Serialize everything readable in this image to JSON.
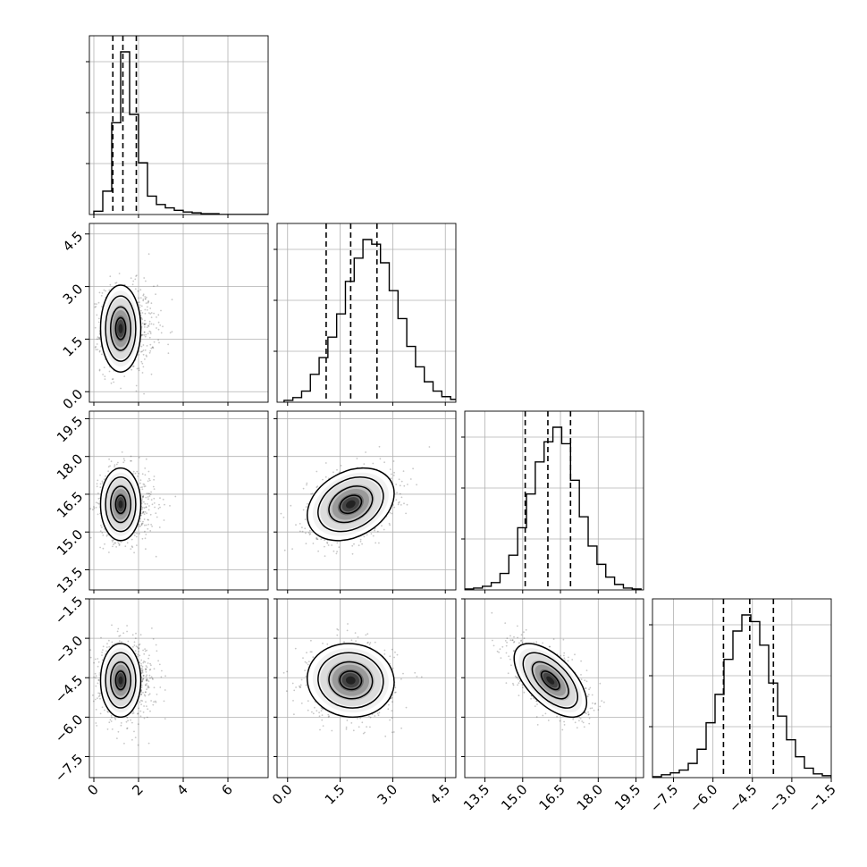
{
  "chart_data": {
    "type": "corner",
    "params": [
      {
        "range": [
          -0.2,
          7.8
        ],
        "ticks": [
          "0",
          "2",
          "4",
          "6"
        ],
        "tick_values": [
          0,
          2,
          4,
          6
        ],
        "quantiles": [
          0.85,
          1.3,
          1.9
        ],
        "hist_edges_start": 0.0,
        "hist_bin_width": 0.4,
        "hist_counts": [
          4,
          28,
          110,
          195,
          120,
          62,
          22,
          12,
          8,
          5,
          3,
          2,
          1,
          1,
          0,
          0,
          0,
          0,
          0,
          0
        ]
      },
      {
        "range": [
          -0.3,
          4.8
        ],
        "ticks": [
          "0.0",
          "1.5",
          "3.0",
          "4.5"
        ],
        "tick_values": [
          0,
          1.5,
          3,
          4.5
        ],
        "quantiles": [
          1.1,
          1.8,
          2.55
        ],
        "hist_edges_start": -0.1,
        "hist_bin_width": 0.25,
        "hist_counts": [
          2,
          5,
          12,
          30,
          48,
          70,
          95,
          130,
          155,
          175,
          170,
          150,
          120,
          90,
          60,
          38,
          22,
          12,
          6,
          3
        ]
      },
      {
        "range": [
          12.7,
          19.8
        ],
        "ticks": [
          "13.5",
          "15.0",
          "16.5",
          "18.0",
          "19.5"
        ],
        "tick_values": [
          13.5,
          15,
          16.5,
          18,
          19.5
        ],
        "quantiles": [
          15.1,
          16.0,
          16.9
        ],
        "hist_edges_start": 12.7,
        "hist_bin_width": 0.35,
        "hist_counts": [
          1,
          2,
          4,
          8,
          18,
          38,
          68,
          105,
          140,
          162,
          178,
          160,
          120,
          80,
          48,
          28,
          14,
          6,
          2,
          1
        ]
      },
      {
        "range": [
          -8.3,
          -1.5
        ],
        "ticks": [
          "-7.5",
          "-6.0",
          "-4.5",
          "-3.0",
          "-1.5"
        ],
        "tick_values": [
          -7.5,
          -6.0,
          -4.5,
          -3.0,
          -1.5
        ],
        "quantiles": [
          -5.6,
          -4.6,
          -3.7
        ],
        "hist_edges_start": -8.3,
        "hist_bin_width": 0.34,
        "hist_counts": [
          1,
          3,
          5,
          8,
          15,
          30,
          58,
          88,
          125,
          155,
          172,
          165,
          140,
          100,
          65,
          40,
          22,
          10,
          4,
          2
        ]
      }
    ],
    "pairs": [
      {
        "row": 1,
        "col": 0,
        "mean": [
          1.2,
          1.8
        ],
        "std": [
          0.45,
          0.62
        ],
        "rho": 0.0
      },
      {
        "row": 2,
        "col": 0,
        "mean": [
          1.2,
          16.1
        ],
        "std": [
          0.45,
          0.72
        ],
        "rho": 0.0
      },
      {
        "row": 2,
        "col": 1,
        "mean": [
          1.8,
          16.1
        ],
        "std": [
          0.62,
          0.72
        ],
        "rho": 0.3
      },
      {
        "row": 3,
        "col": 0,
        "mean": [
          1.2,
          -4.6
        ],
        "std": [
          0.45,
          0.7
        ],
        "rho": 0.0
      },
      {
        "row": 3,
        "col": 1,
        "mean": [
          1.8,
          -4.6
        ],
        "std": [
          0.62,
          0.7
        ],
        "rho": -0.05
      },
      {
        "row": 3,
        "col": 2,
        "mean": [
          16.1,
          -4.6
        ],
        "std": [
          0.72,
          0.7
        ],
        "rho": -0.6
      }
    ],
    "contour_sigmas": [
      0.5,
      1.0,
      1.5,
      2.0
    ],
    "grid": true,
    "colors": {
      "line": "#000000",
      "grid": "#b0b0b0",
      "points": "#000000"
    }
  }
}
